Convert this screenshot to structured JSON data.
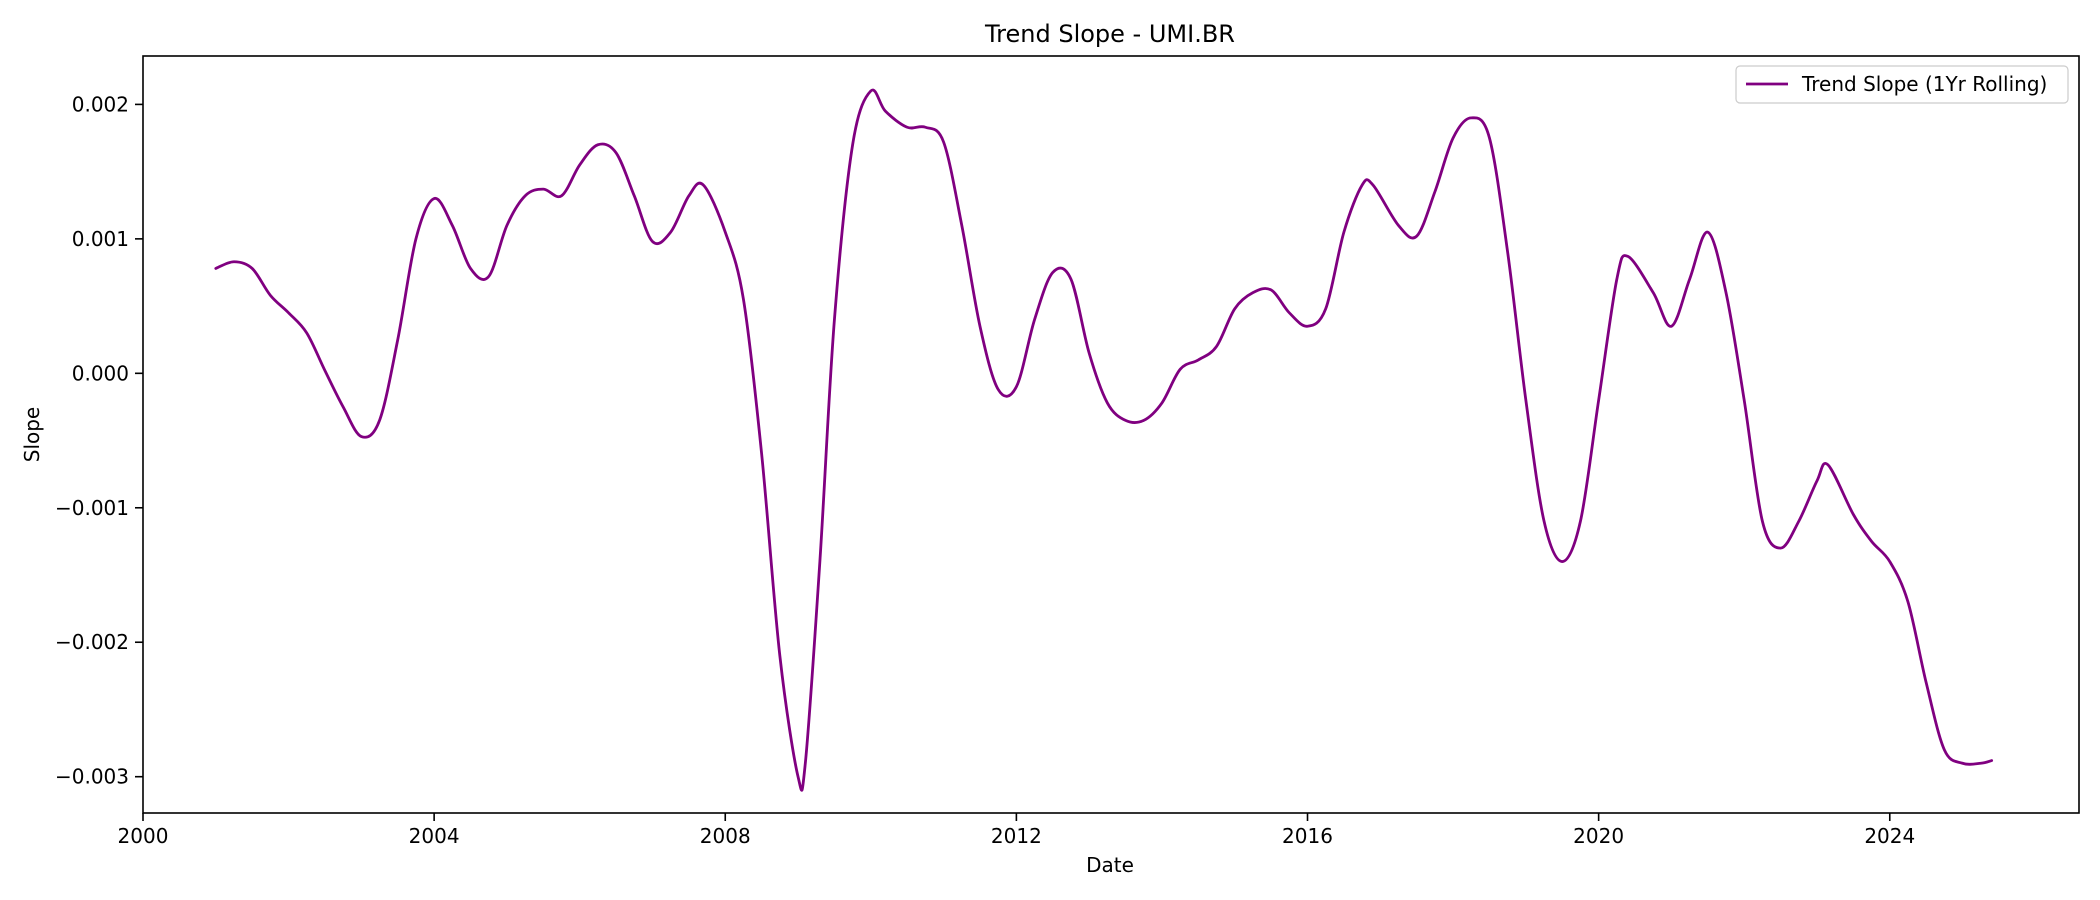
{
  "chart_data": {
    "type": "line",
    "title": "Trend Slope - UMI.BR",
    "xlabel": "Date",
    "ylabel": "Slope",
    "xlim": [
      2000,
      2026.6
    ],
    "ylim": [
      -0.00327,
      0.00236
    ],
    "grid": false,
    "legend_position": "top-right",
    "x_ticks": [
      2000,
      2004,
      2008,
      2012,
      2016,
      2020,
      2024
    ],
    "x_tick_labels": [
      "2000",
      "2004",
      "2008",
      "2012",
      "2016",
      "2020",
      "2024"
    ],
    "y_ticks": [
      0.002,
      0.001,
      0.0,
      -0.001,
      -0.002,
      -0.003
    ],
    "y_tick_labels": [
      "0.002",
      "0.001",
      "0.000",
      "−0.001",
      "−0.002",
      "−0.003"
    ],
    "series": [
      {
        "name": "Trend Slope (1Yr Rolling)",
        "color": "#800080",
        "x": [
          2001.0,
          2001.25,
          2001.5,
          2001.75,
          2002.0,
          2002.25,
          2002.5,
          2002.75,
          2003.0,
          2003.25,
          2003.5,
          2003.75,
          2004.0,
          2004.25,
          2004.5,
          2004.75,
          2005.0,
          2005.25,
          2005.5,
          2005.75,
          2006.0,
          2006.25,
          2006.5,
          2006.75,
          2007.0,
          2007.25,
          2007.5,
          2007.7,
          2008.0,
          2008.25,
          2008.5,
          2008.75,
          2009.0,
          2009.1,
          2009.3,
          2009.5,
          2009.75,
          2010.0,
          2010.2,
          2010.5,
          2010.75,
          2011.0,
          2011.25,
          2011.5,
          2011.75,
          2012.0,
          2012.25,
          2012.5,
          2012.75,
          2013.0,
          2013.25,
          2013.5,
          2013.75,
          2014.0,
          2014.25,
          2014.5,
          2014.75,
          2015.0,
          2015.25,
          2015.5,
          2015.75,
          2016.0,
          2016.25,
          2016.5,
          2016.75,
          2016.9,
          2017.25,
          2017.5,
          2017.75,
          2018.0,
          2018.25,
          2018.5,
          2018.75,
          2019.0,
          2019.25,
          2019.5,
          2019.75,
          2020.0,
          2020.25,
          2020.4,
          2020.75,
          2021.0,
          2021.25,
          2021.5,
          2021.75,
          2022.0,
          2022.25,
          2022.5,
          2022.75,
          2023.0,
          2023.15,
          2023.5,
          2023.75,
          2024.0,
          2024.25,
          2024.5,
          2024.75,
          2025.0,
          2025.25,
          2025.4
        ],
        "y": [
          0.00078,
          0.00083,
          0.00078,
          0.00058,
          0.00045,
          0.0003,
          2e-05,
          -0.00025,
          -0.00047,
          -0.00035,
          0.00025,
          0.001,
          0.0013,
          0.0011,
          0.00078,
          0.00072,
          0.0011,
          0.00132,
          0.00137,
          0.00132,
          0.00155,
          0.0017,
          0.00164,
          0.00132,
          0.00098,
          0.00105,
          0.00132,
          0.0014,
          0.00105,
          0.00055,
          -0.0006,
          -0.0021,
          -0.003,
          -0.0029,
          -0.0014,
          0.0004,
          0.0017,
          0.0021,
          0.00195,
          0.00183,
          0.00183,
          0.00172,
          0.0011,
          0.00035,
          -0.00012,
          -0.0001,
          0.0004,
          0.00075,
          0.0007,
          0.00015,
          -0.00022,
          -0.00035,
          -0.00035,
          -0.00022,
          3e-05,
          0.0001,
          0.0002,
          0.00048,
          0.0006,
          0.00062,
          0.00045,
          0.00035,
          0.00048,
          0.00105,
          0.0014,
          0.0014,
          0.0011,
          0.00102,
          0.00135,
          0.00175,
          0.0019,
          0.00175,
          0.0009,
          -0.0002,
          -0.0011,
          -0.0014,
          -0.0011,
          -0.0002,
          0.0007,
          0.00087,
          0.0006,
          0.00035,
          0.0007,
          0.00105,
          0.0006,
          -0.0002,
          -0.0011,
          -0.0013,
          -0.0011,
          -0.0008,
          -0.00068,
          -0.00105,
          -0.00125,
          -0.0014,
          -0.0017,
          -0.0023,
          -0.0028,
          -0.0029,
          -0.0029,
          -0.00288
        ]
      }
    ]
  }
}
